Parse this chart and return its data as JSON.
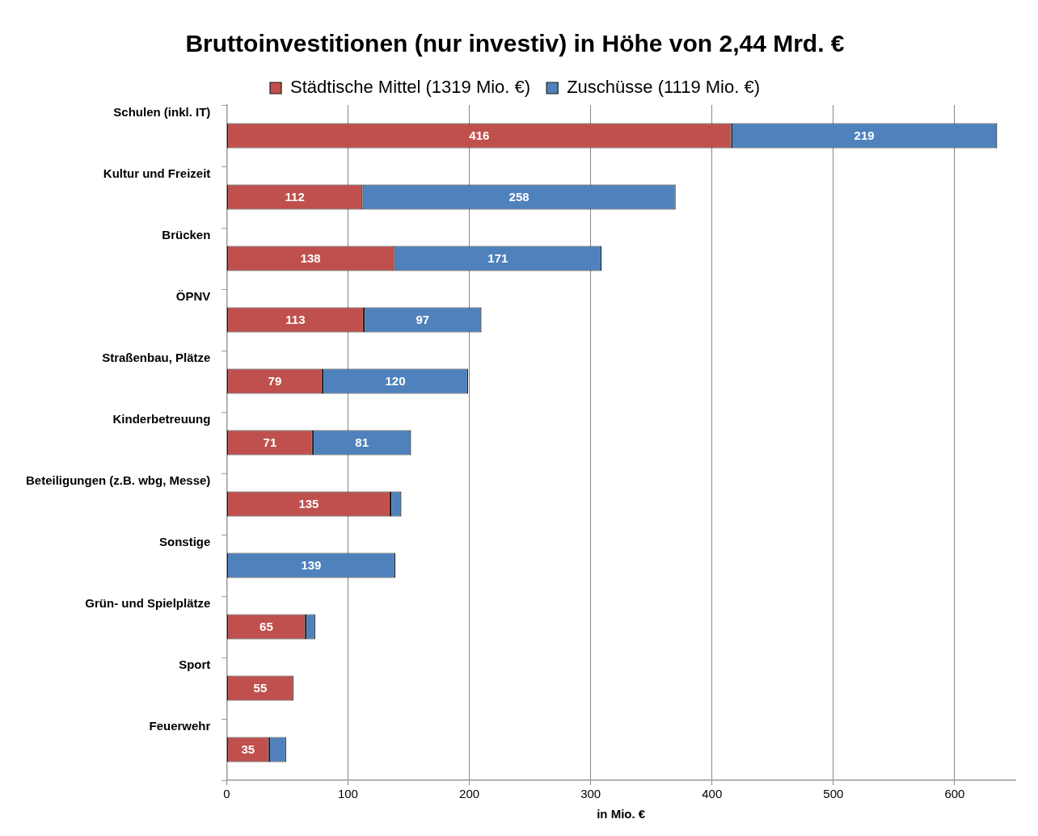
{
  "chart_data": {
    "type": "bar",
    "orientation": "horizontal",
    "stacked": true,
    "title": "Bruttoinvestitionen (nur investiv) in Höhe von 2,44 Mrd. €",
    "xlabel": "in Mio. €",
    "categories": [
      "Schulen (inkl. IT)",
      "Kultur und Freizeit",
      "Brücken",
      "ÖPNV",
      "Straßenbau, Plätze",
      "Kinderbetreuung",
      "Beteiligungen (z.B. wbg, Messe)",
      "Sonstige",
      "Grün- und Spielplätze",
      "Sport",
      "Feuerwehr"
    ],
    "series": [
      {
        "name": "Städtische Mittel (1319 Mio. €)",
        "color": "#c0504d",
        "values": [
          416,
          112,
          138,
          113,
          79,
          71,
          135,
          0,
          65,
          55,
          35
        ],
        "value_labels": [
          "416",
          "112",
          "138",
          "113",
          "79",
          "71",
          "135",
          null,
          "65",
          "55",
          "35"
        ]
      },
      {
        "name": "Zuschüsse (1119 Mio. €)",
        "color": "#4f81bd",
        "values": [
          219,
          258,
          171,
          97,
          120,
          81,
          9,
          139,
          8,
          0,
          14
        ],
        "value_labels": [
          "219",
          "258",
          "171",
          "97",
          "120",
          "81",
          null,
          "139",
          null,
          null,
          null
        ]
      }
    ],
    "xlim": [
      0,
      650
    ],
    "xticks": [
      0,
      100,
      200,
      300,
      400,
      500,
      600
    ],
    "grid": "x",
    "legend": "top"
  }
}
